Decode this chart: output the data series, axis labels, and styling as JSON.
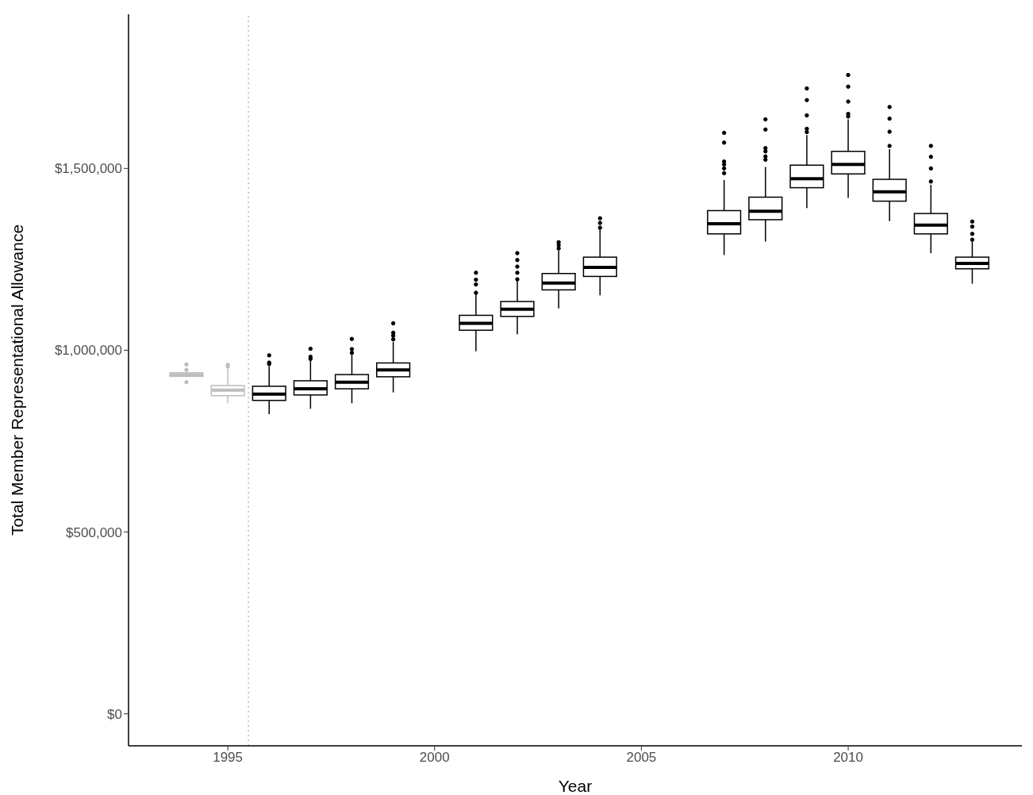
{
  "chart_data": {
    "type": "box",
    "xlabel": "Year",
    "ylabel": "Total Member Representational Allowance",
    "xlim": [
      1992.6,
      2014.2
    ],
    "xticks": [
      1995,
      2000,
      2005,
      2010
    ],
    "ylim": [
      -88000,
      1924000
    ],
    "yticks": [
      {
        "value": 0,
        "label": "$0"
      },
      {
        "value": 500000,
        "label": "$500,000"
      },
      {
        "value": 1000000,
        "label": "$1,000,000"
      },
      {
        "value": 1500000,
        "label": "$1,500,000"
      }
    ],
    "ref_lines": [
      {
        "axis": "x",
        "value": 1995.5,
        "color": "#bebebe",
        "line_style": "dotted"
      }
    ],
    "x": [
      1994,
      1995,
      1996,
      1997,
      1998,
      1999,
      2001,
      2002,
      2003,
      2004,
      2007,
      2008,
      2009,
      2010,
      2011,
      2012,
      2013
    ],
    "colors": [
      "#bebebe",
      "#bebebe",
      "#000000",
      "#000000",
      "#000000",
      "#000000",
      "#000000",
      "#000000",
      "#000000",
      "#000000",
      "#000000",
      "#000000",
      "#000000",
      "#000000",
      "#000000",
      "#000000",
      "#000000"
    ],
    "boxes": [
      {
        "low": 928000,
        "q1": 928000,
        "median": 933000,
        "q3": 938000,
        "high": 938000,
        "outliers": [
          912000,
          946000,
          961000
        ]
      },
      {
        "low": 854000,
        "q1": 875000,
        "median": 890000,
        "q3": 903000,
        "high": 950000,
        "outliers": [
          955000,
          960000
        ]
      },
      {
        "low": 824000,
        "q1": 862000,
        "median": 879000,
        "q3": 901000,
        "high": 956000,
        "outliers": [
          962000,
          966000,
          986000
        ]
      },
      {
        "low": 839000,
        "q1": 877000,
        "median": 894000,
        "q3": 916000,
        "high": 971000,
        "outliers": [
          976000,
          982000,
          1004000
        ]
      },
      {
        "low": 854000,
        "q1": 894000,
        "median": 912000,
        "q3": 933000,
        "high": 989000,
        "outliers": [
          993000,
          1003000,
          1031000
        ]
      },
      {
        "low": 884000,
        "q1": 927000,
        "median": 946000,
        "q3": 965000,
        "high": 1023000,
        "outliers": [
          1030000,
          1040000,
          1048000,
          1074000
        ]
      },
      {
        "low": 997000,
        "q1": 1055000,
        "median": 1074000,
        "q3": 1096000,
        "high": 1153000,
        "outliers": [
          1158000,
          1181000,
          1194000,
          1213000
        ]
      },
      {
        "low": 1044000,
        "q1": 1093000,
        "median": 1113000,
        "q3": 1134000,
        "high": 1192000,
        "outliers": [
          1195000,
          1213000,
          1230000,
          1248000,
          1267000
        ]
      },
      {
        "low": 1115000,
        "q1": 1166000,
        "median": 1185000,
        "q3": 1211000,
        "high": 1275000,
        "outliers": [
          1280000,
          1289000,
          1297000
        ]
      },
      {
        "low": 1151000,
        "q1": 1203000,
        "median": 1228000,
        "q3": 1256000,
        "high": 1333000,
        "outliers": [
          1337000,
          1350000,
          1363000
        ]
      },
      {
        "low": 1262000,
        "q1": 1320000,
        "median": 1348000,
        "q3": 1384000,
        "high": 1468000,
        "outliers": [
          1487000,
          1500000,
          1511000,
          1519000,
          1571000,
          1598000
        ]
      },
      {
        "low": 1299000,
        "q1": 1359000,
        "median": 1382000,
        "q3": 1421000,
        "high": 1504000,
        "outliers": [
          1524000,
          1533000,
          1547000,
          1556000,
          1607000,
          1635000
        ]
      },
      {
        "low": 1391000,
        "q1": 1447000,
        "median": 1472000,
        "q3": 1509000,
        "high": 1592000,
        "outliers": [
          1600000,
          1609000,
          1646000,
          1688000,
          1720000
        ]
      },
      {
        "low": 1419000,
        "q1": 1485000,
        "median": 1511000,
        "q3": 1547000,
        "high": 1635000,
        "outliers": [
          1643000,
          1650000,
          1684000,
          1725000,
          1757000
        ]
      },
      {
        "low": 1355000,
        "q1": 1410000,
        "median": 1436000,
        "q3": 1470000,
        "high": 1553000,
        "outliers": [
          1562000,
          1601000,
          1637000,
          1669000
        ]
      },
      {
        "low": 1267000,
        "q1": 1320000,
        "median": 1344000,
        "q3": 1376000,
        "high": 1455000,
        "outliers": [
          1464000,
          1500000,
          1532000,
          1562000
        ]
      },
      {
        "low": 1183000,
        "q1": 1224000,
        "median": 1239000,
        "q3": 1256000,
        "high": 1299000,
        "outliers": [
          1304000,
          1320000,
          1340000,
          1354000
        ]
      }
    ]
  }
}
